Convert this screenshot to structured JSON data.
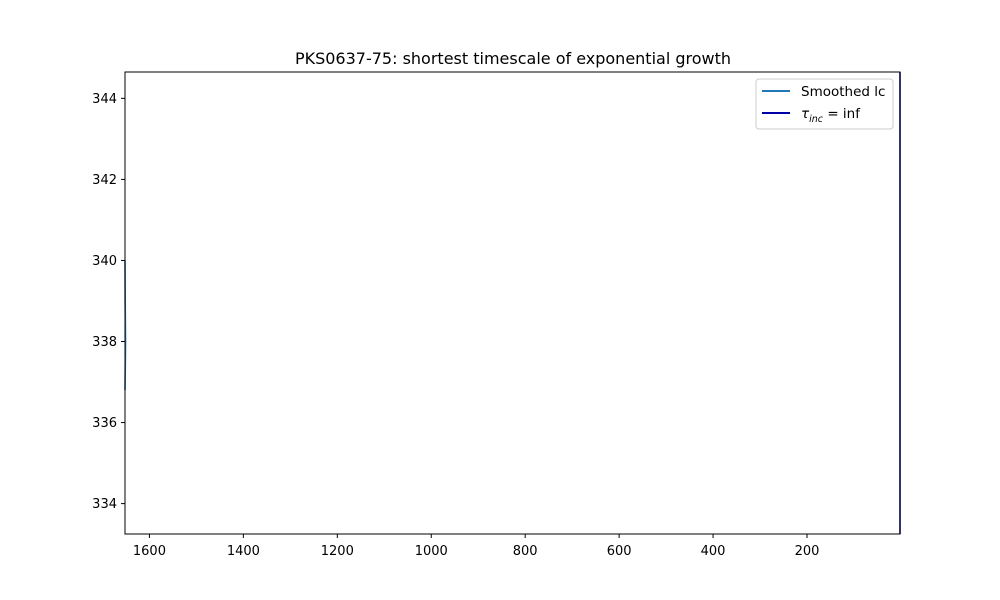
{
  "chart_data": {
    "type": "line",
    "title": "PKS0637-75: shortest timescale of exponential growth",
    "xlabel": "",
    "ylabel": "",
    "xlim": [
      1652,
      2
    ],
    "ylim": [
      333.25,
      344.65
    ],
    "x_reversed": true,
    "xticks": [
      1600,
      1400,
      1200,
      1000,
      800,
      600,
      400,
      200
    ],
    "yticks": [
      334,
      336,
      338,
      340,
      342,
      344
    ],
    "grid": false,
    "legend_position": "top-right",
    "series": [
      {
        "name": "Smoothed lc",
        "color": "#1f77b4",
        "x": [
          1652,
          1651.6,
          1651.2,
          1650.9,
          1651.2,
          1651.6,
          1652
        ],
        "y": [
          340.0,
          339.0,
          338.4,
          338.0,
          337.6,
          337.2,
          336.8
        ]
      },
      {
        "name_prefix": "τ",
        "name_subscript": "inc",
        "name_suffix": " = inf",
        "color": "#0000aa",
        "x": [
          2,
          2
        ],
        "y": [
          333.25,
          344.65
        ]
      }
    ]
  }
}
